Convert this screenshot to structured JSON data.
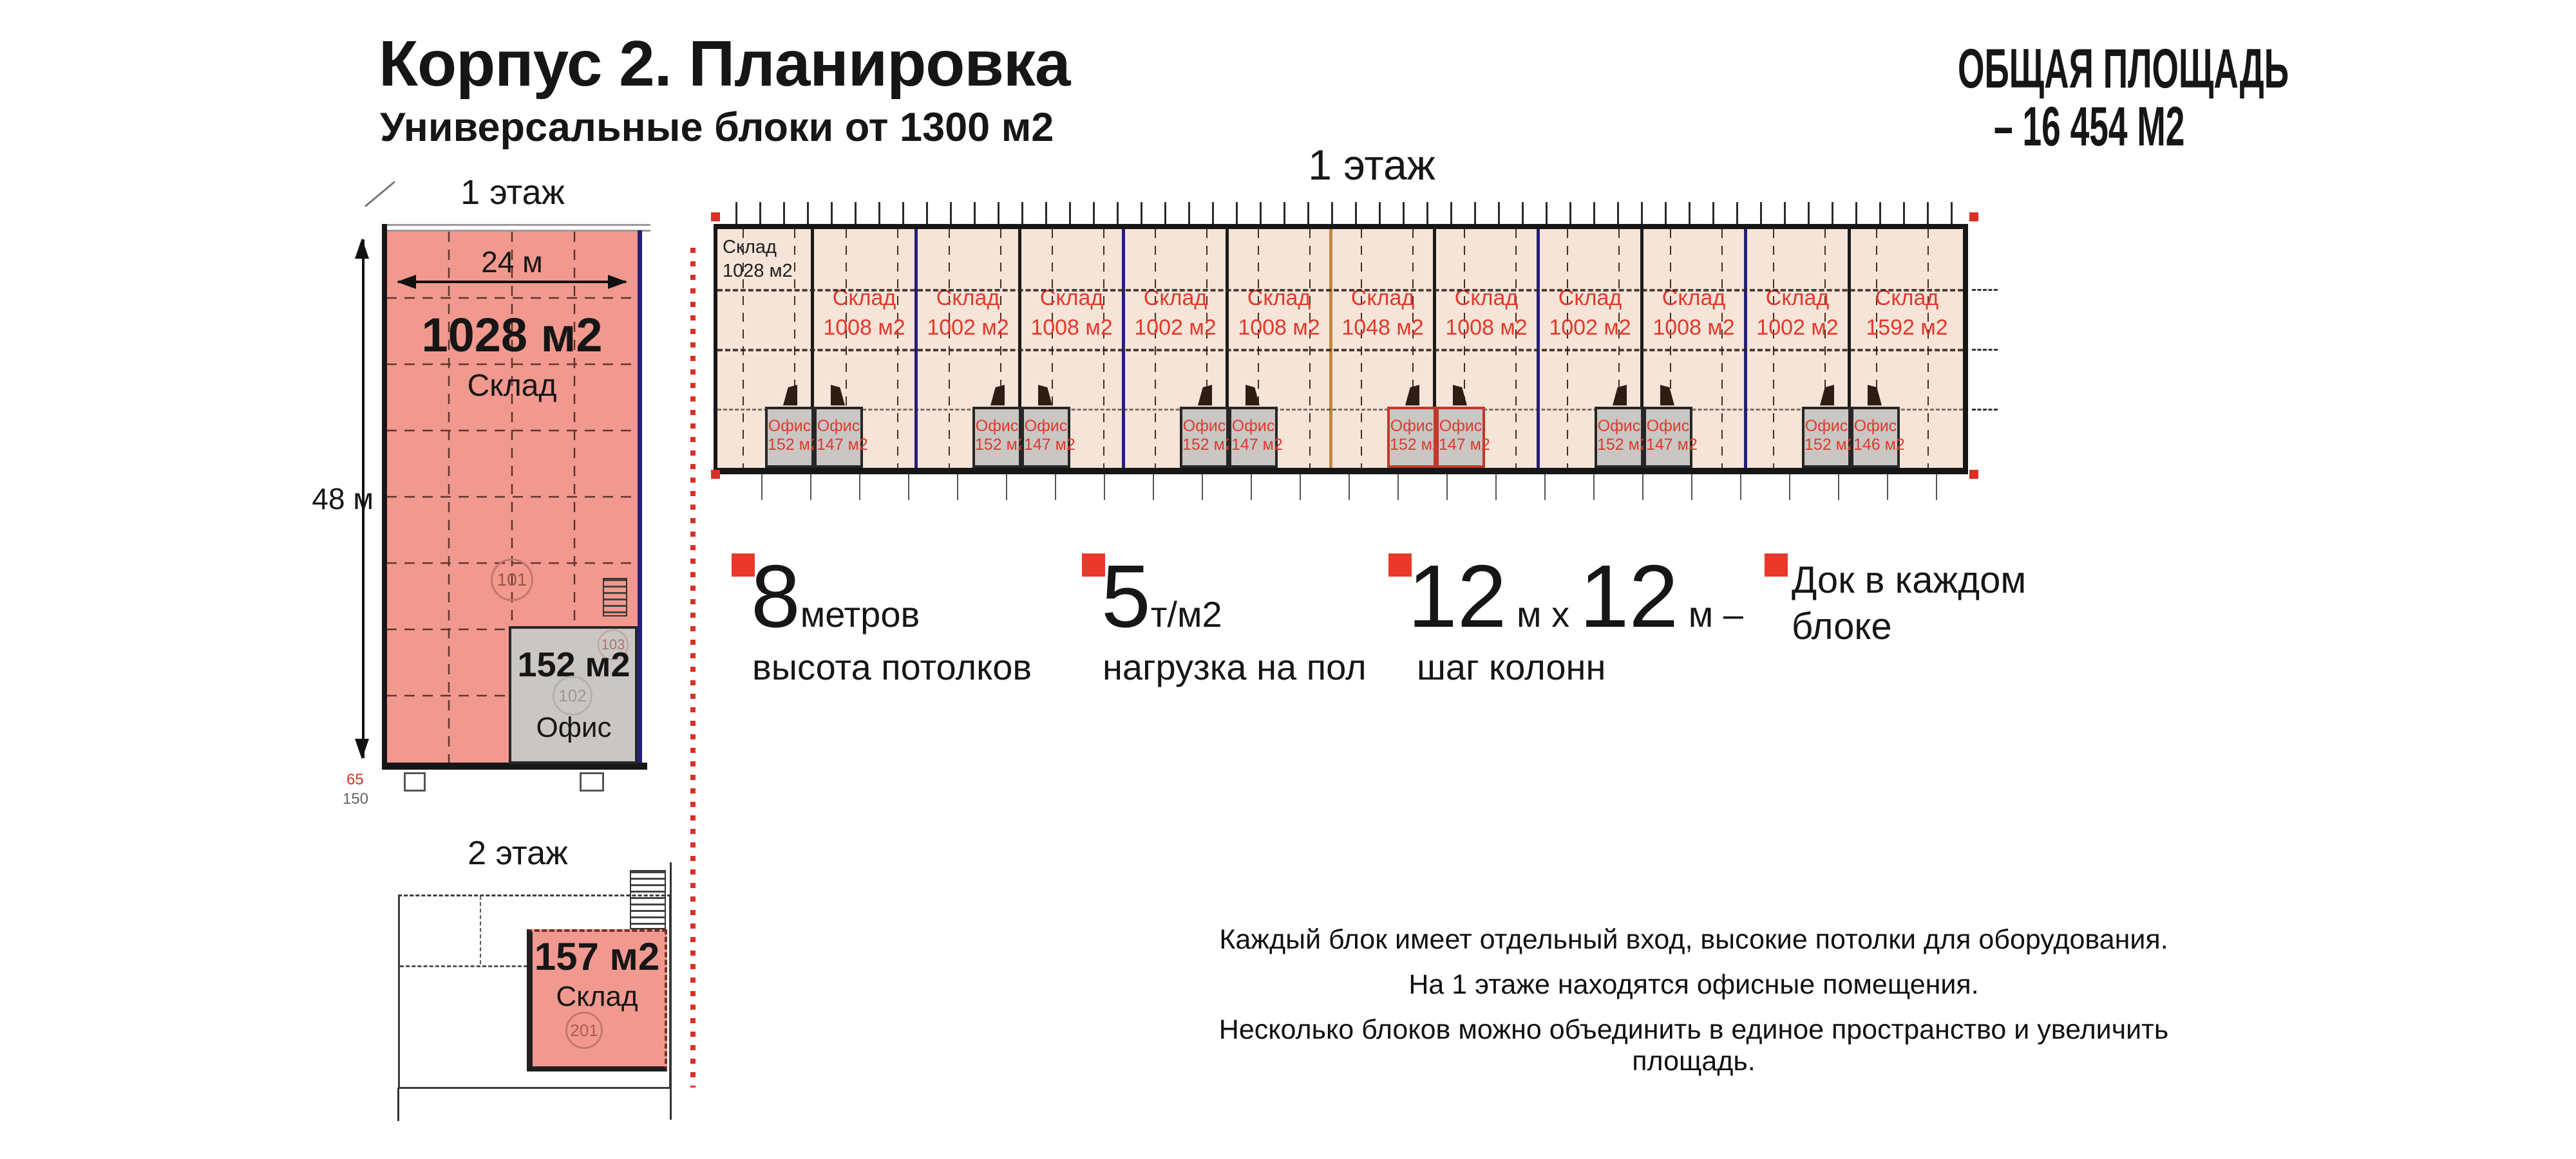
{
  "header": {
    "title": "Корпус 2. Планировка",
    "subtitle": "Универсальные блоки от 1300 м2",
    "total_area_line1": "ОБЩАЯ ПЛОЩАДЬ",
    "total_area_line2": "– 16 454  М2"
  },
  "left_plan": {
    "floor_label": "1 этаж",
    "width_dim": "24 м",
    "height_dim": "48 м",
    "warehouse_area": "1028 м2",
    "warehouse_label": "Склад",
    "warehouse_room": "101",
    "office_area": "152 м2",
    "office_label": "Офис",
    "office_room": "102",
    "office_room_upper": "103",
    "dim_note_red": "65",
    "dim_note_gray": "150"
  },
  "second_floor": {
    "floor_label": "2 этаж",
    "warehouse_area": "157 м2",
    "warehouse_label": "Склад",
    "room": "201"
  },
  "main_plan": {
    "floor_label": "1 этаж",
    "blocks": [
      {
        "label": "Склад",
        "area": "1028 м2"
      },
      {
        "label": "Склад",
        "area": "1008 м2"
      },
      {
        "label": "Склад",
        "area": "1002 м2"
      },
      {
        "label": "Склад",
        "area": "1008 м2"
      },
      {
        "label": "Склад",
        "area": "1002 м2"
      },
      {
        "label": "Склад",
        "area": "1008 м2"
      },
      {
        "label": "Склад",
        "area": "1048 м2"
      },
      {
        "label": "Склад",
        "area": "1008 м2"
      },
      {
        "label": "Склад",
        "area": "1002 м2"
      },
      {
        "label": "Склад",
        "area": "1008 м2"
      },
      {
        "label": "Склад",
        "area": "1002 м2"
      },
      {
        "label": "Склад",
        "area": "1592 м2"
      }
    ],
    "offices": [
      {
        "left": {
          "label": "Офис",
          "area": "152 м2"
        },
        "right": {
          "label": "Офис",
          "area": "147 м2"
        }
      },
      {
        "left": {
          "label": "Офис",
          "area": "152 м2"
        },
        "right": {
          "label": "Офис",
          "area": "147 м2"
        }
      },
      {
        "left": {
          "label": "Офис",
          "area": "152 м2"
        },
        "right": {
          "label": "Офис",
          "area": "147 м2"
        }
      },
      {
        "left": {
          "label": "Офис",
          "area": "152 м2"
        },
        "right": {
          "label": "Офис",
          "area": "147 м2"
        }
      },
      {
        "left": {
          "label": "Офис",
          "area": "152 м2"
        },
        "right": {
          "label": "Офис",
          "area": "147 м2"
        }
      },
      {
        "left": {
          "label": "Офис",
          "area": "152 м2"
        },
        "right": {
          "label": "Офис",
          "area": "146 м2"
        }
      }
    ]
  },
  "features": [
    {
      "value": "8",
      "unit": "метров",
      "caption": "высота потолков"
    },
    {
      "value": "5",
      "unit": "т/м2",
      "caption": "нагрузка на пол"
    },
    {
      "value": "12",
      "unit": " м ",
      "times": "х ",
      "value2": "12",
      "unit2": " м –",
      "caption": "шаг колонн"
    },
    {
      "line1": "Док в каждом",
      "line2": "блоке"
    }
  ],
  "notes": [
    "Каждый блок имеет отдельный вход, высокие потолки для оборудования.",
    "На 1 этаже находятся офисные помещения.",
    "Несколько блоков можно объединить в единое пространство и увеличить площадь."
  ],
  "colors": {
    "accent_red": "#E8392B",
    "label_red": "#E0392C",
    "plan_pink": "#F2998F",
    "plan_peach": "#F5E4D7",
    "office_gray": "#C9C6C3",
    "wall_black": "#161616",
    "divider_blue": "#23207A",
    "divider_orange": "#C08A3E",
    "dotted_line_red": "#D93025"
  }
}
